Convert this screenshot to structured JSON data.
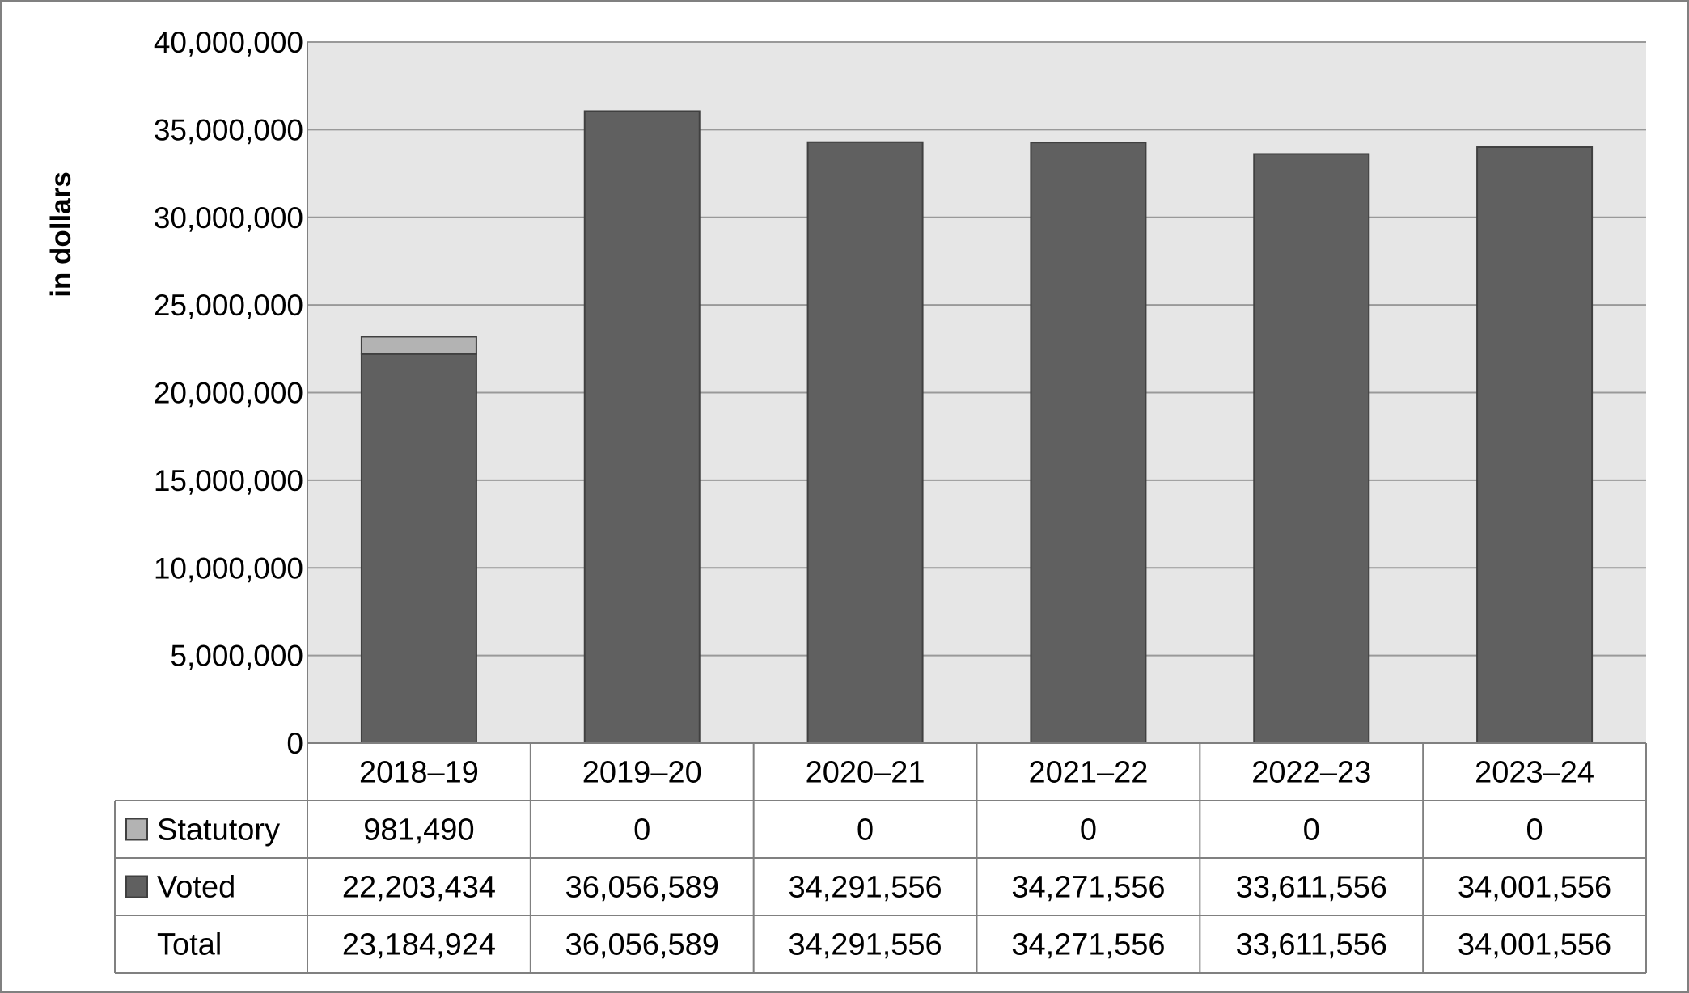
{
  "chart_data": {
    "type": "bar",
    "stacked": true,
    "ylabel": "in dollars",
    "ylim": [
      0,
      40000000
    ],
    "ytick_step": 5000000,
    "yticks": [
      "0",
      "5,000,000",
      "10,000,000",
      "15,000,000",
      "20,000,000",
      "25,000,000",
      "30,000,000",
      "35,000,000",
      "40,000,000"
    ],
    "categories": [
      "2018–19",
      "2019–20",
      "2020–21",
      "2021–22",
      "2022–23",
      "2023–24"
    ],
    "series": [
      {
        "name": "Voted",
        "values": [
          22203434,
          36056589,
          34291556,
          34271556,
          33611556,
          34001556
        ],
        "color": "#606060"
      },
      {
        "name": "Statutory",
        "values": [
          981490,
          0,
          0,
          0,
          0,
          0
        ],
        "color": "#b3b3b3"
      }
    ],
    "table": {
      "rows": [
        {
          "label": "Statutory",
          "swatch": "#b3b3b3",
          "cells": [
            "981,490",
            "0",
            "0",
            "0",
            "0",
            "0"
          ]
        },
        {
          "label": "Voted",
          "swatch": "#606060",
          "cells": [
            "22,203,434",
            "36,056,589",
            "34,291,556",
            "34,271,556",
            "33,611,556",
            "34,001,556"
          ]
        },
        {
          "label": "Total",
          "swatch": null,
          "cells": [
            "23,184,924",
            "36,056,589",
            "34,291,556",
            "34,271,556",
            "33,611,556",
            "34,001,556"
          ]
        }
      ]
    },
    "grid": true,
    "plot_background": "#e6e6e6",
    "gridline_color": "#999999"
  }
}
